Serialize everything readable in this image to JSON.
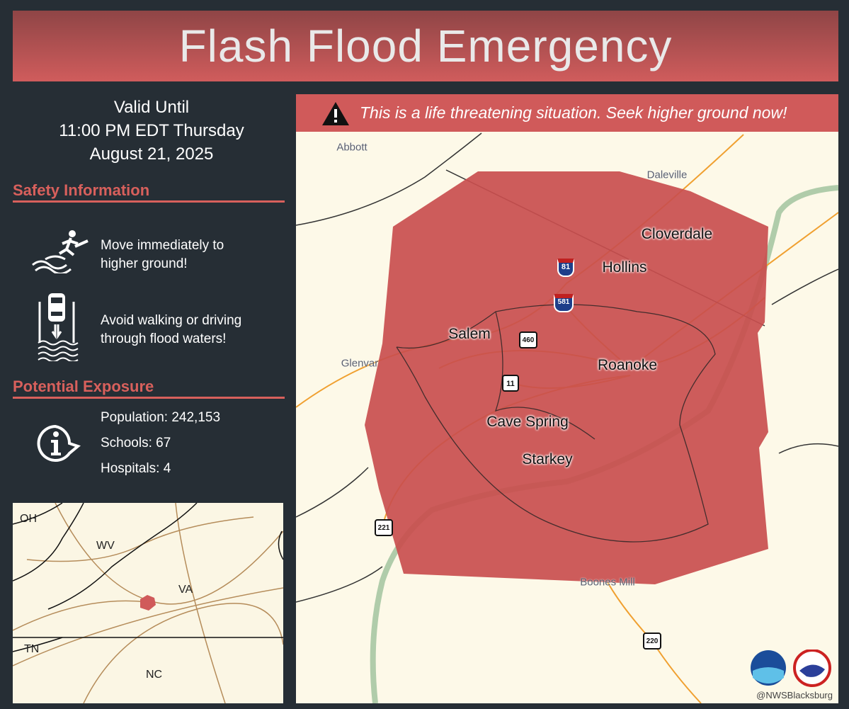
{
  "title": "Flash Flood Emergency",
  "valid": {
    "line1": "Valid Until",
    "line2": "11:00 PM EDT Thursday",
    "line3": "August 21, 2025"
  },
  "safety": {
    "heading": "Safety Information",
    "tips": [
      "Move immediately to higher ground!",
      "Avoid walking or driving through flood waters!"
    ]
  },
  "exposure": {
    "heading": "Potential Exposure",
    "population": "Population: 242,153",
    "schools": "Schools: 67",
    "hospitals": "Hospitals: 4"
  },
  "alert": "This is a life threatening situation. Seek higher ground now!",
  "places": {
    "major": [
      "Cloverdale",
      "Hollins",
      "Salem",
      "Roanoke",
      "Cave Spring",
      "Starkey"
    ],
    "minor": [
      "Abbott",
      "Daleville",
      "Glenvar",
      "Boones Mill"
    ]
  },
  "shields": [
    "81",
    "581",
    "460",
    "11",
    "221",
    "220"
  ],
  "inset": {
    "labels": [
      "OH",
      "WV",
      "VA",
      "TN",
      "NC"
    ]
  },
  "handle": "@NWSBlacksburg",
  "colors": {
    "warning": "#d05a5a",
    "background": "#262e35",
    "map": "#fdf9e8"
  }
}
